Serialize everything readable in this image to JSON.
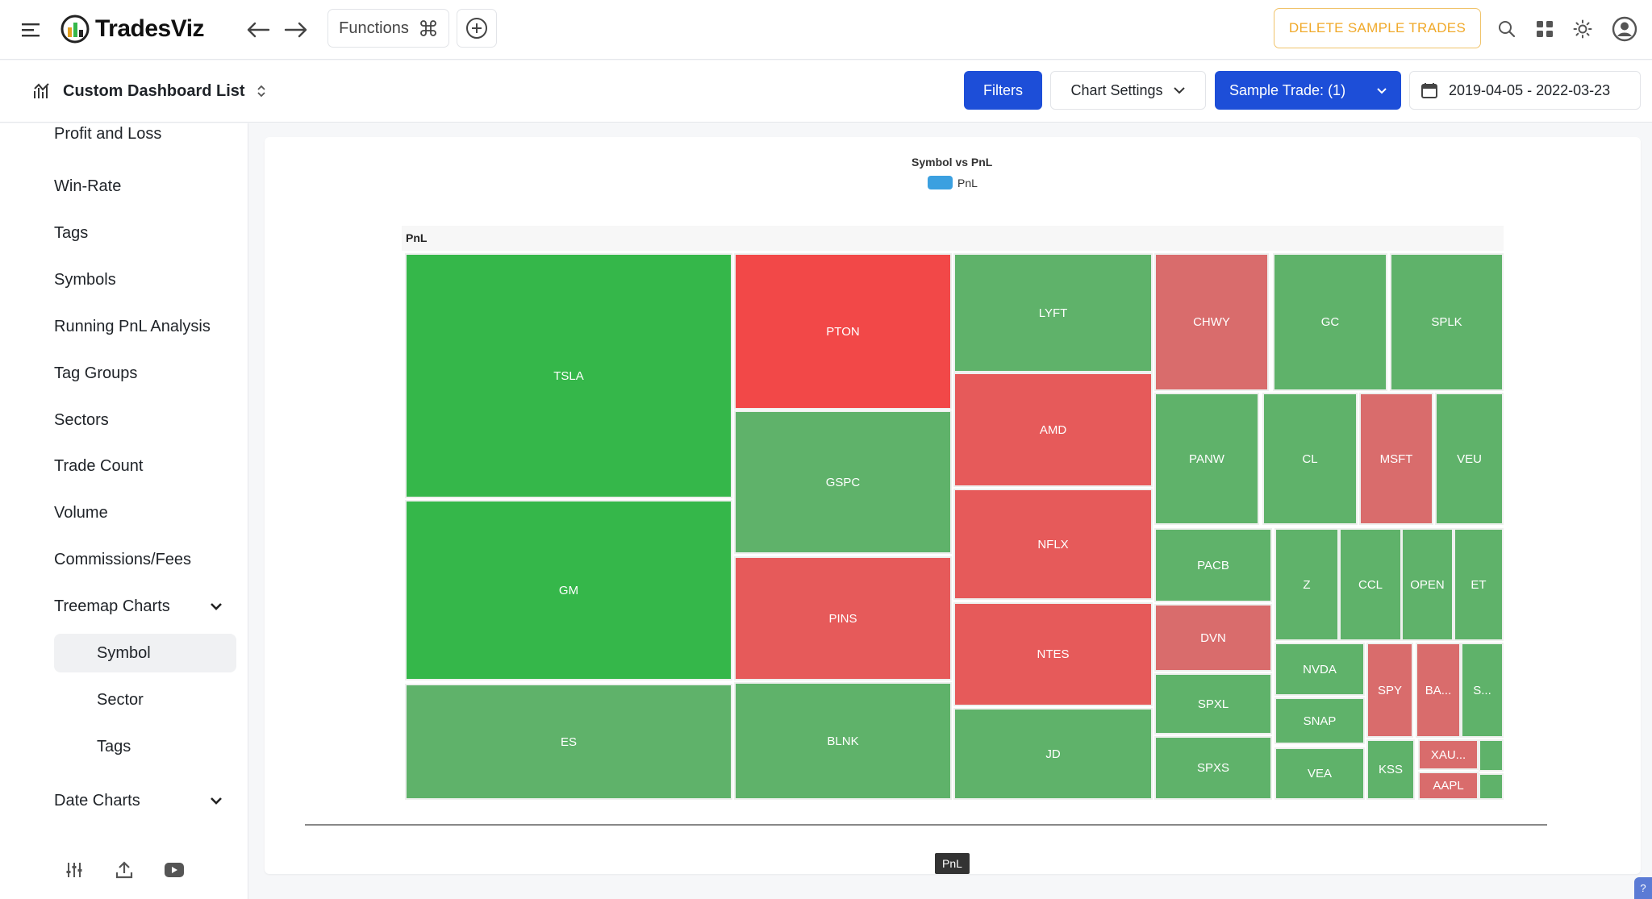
{
  "app": {
    "name": "TradesViz"
  },
  "topbar": {
    "functions_label": "Functions",
    "delete_sample_label": "DELETE SAMPLE TRADES"
  },
  "subbar": {
    "dashboard_title": "Custom Dashboard List",
    "filters_label": "Filters",
    "chart_settings_label": "Chart Settings",
    "sample_trades_label": "Sample Trade: (1)",
    "date_range": "2019-04-05 - 2022-03-23"
  },
  "sidebar": {
    "items": [
      {
        "label": "Profit and Loss"
      },
      {
        "label": "Win-Rate"
      },
      {
        "label": "Tags"
      },
      {
        "label": "Symbols"
      },
      {
        "label": "Running PnL Analysis"
      },
      {
        "label": "Tag Groups"
      },
      {
        "label": "Sectors"
      },
      {
        "label": "Trade Count"
      },
      {
        "label": "Volume"
      },
      {
        "label": "Commissions/Fees"
      },
      {
        "label": "Treemap Charts"
      },
      {
        "label": "Date Charts"
      }
    ],
    "treemap_sub": [
      {
        "label": "Symbol",
        "active": true
      },
      {
        "label": "Sector",
        "active": false
      },
      {
        "label": "Tags",
        "active": false
      }
    ]
  },
  "colors": {
    "accent": "#1d4ed8",
    "warning": "#f0a92a",
    "profit_strong": "#35b74a",
    "profit": "#5fb26a",
    "loss_strong": "#f24848",
    "loss": "#e65a5a",
    "loss_light": "#d96c6c",
    "legend": "#3ba0e0"
  },
  "chart_data": {
    "type": "treemap",
    "title": "Symbol vs PnL",
    "legend": [
      "PnL"
    ],
    "series_label": "PnL",
    "axis_tag": "PnL",
    "tiles": [
      {
        "label": "TSLA",
        "sign": "profit",
        "shade": "profit_strong"
      },
      {
        "label": "GM",
        "sign": "profit",
        "shade": "profit_strong"
      },
      {
        "label": "ES",
        "sign": "profit",
        "shade": "profit"
      },
      {
        "label": "PTON",
        "sign": "loss",
        "shade": "loss_strong"
      },
      {
        "label": "GSPC",
        "sign": "profit",
        "shade": "profit"
      },
      {
        "label": "PINS",
        "sign": "loss",
        "shade": "loss"
      },
      {
        "label": "BLNK",
        "sign": "profit",
        "shade": "profit"
      },
      {
        "label": "LYFT",
        "sign": "profit",
        "shade": "profit"
      },
      {
        "label": "AMD",
        "sign": "loss",
        "shade": "loss"
      },
      {
        "label": "NFLX",
        "sign": "loss",
        "shade": "loss"
      },
      {
        "label": "NTES",
        "sign": "loss",
        "shade": "loss"
      },
      {
        "label": "JD",
        "sign": "profit",
        "shade": "profit"
      },
      {
        "label": "CHWY",
        "sign": "loss",
        "shade": "loss_light"
      },
      {
        "label": "GC",
        "sign": "profit",
        "shade": "profit"
      },
      {
        "label": "SPLK",
        "sign": "profit",
        "shade": "profit"
      },
      {
        "label": "PANW",
        "sign": "profit",
        "shade": "profit"
      },
      {
        "label": "CL",
        "sign": "profit",
        "shade": "profit"
      },
      {
        "label": "MSFT",
        "sign": "loss",
        "shade": "loss_light"
      },
      {
        "label": "VEU",
        "sign": "profit",
        "shade": "profit"
      },
      {
        "label": "PACB",
        "sign": "profit",
        "shade": "profit"
      },
      {
        "label": "DVN",
        "sign": "loss",
        "shade": "loss_light"
      },
      {
        "label": "SPXL",
        "sign": "profit",
        "shade": "profit"
      },
      {
        "label": "SPXS",
        "sign": "profit",
        "shade": "profit"
      },
      {
        "label": "Z",
        "sign": "profit",
        "shade": "profit"
      },
      {
        "label": "CCL",
        "sign": "profit",
        "shade": "profit"
      },
      {
        "label": "OPEN",
        "sign": "profit",
        "shade": "profit"
      },
      {
        "label": "ET",
        "sign": "profit",
        "shade": "profit"
      },
      {
        "label": "NVDA",
        "sign": "profit",
        "shade": "profit"
      },
      {
        "label": "SNAP",
        "sign": "profit",
        "shade": "profit"
      },
      {
        "label": "VEA",
        "sign": "profit",
        "shade": "profit"
      },
      {
        "label": "SPY",
        "sign": "loss",
        "shade": "loss_light"
      },
      {
        "label": "BA...",
        "sign": "loss",
        "shade": "loss_light"
      },
      {
        "label": "S...",
        "sign": "profit",
        "shade": "profit"
      },
      {
        "label": "KSS",
        "sign": "profit",
        "shade": "profit"
      },
      {
        "label": "XAU...",
        "sign": "loss",
        "shade": "loss_light"
      },
      {
        "label": "AAPL",
        "sign": "loss",
        "shade": "loss_light"
      },
      {
        "label": "",
        "sign": "profit",
        "shade": "profit"
      },
      {
        "label": "",
        "sign": "profit",
        "shade": "profit"
      }
    ]
  }
}
